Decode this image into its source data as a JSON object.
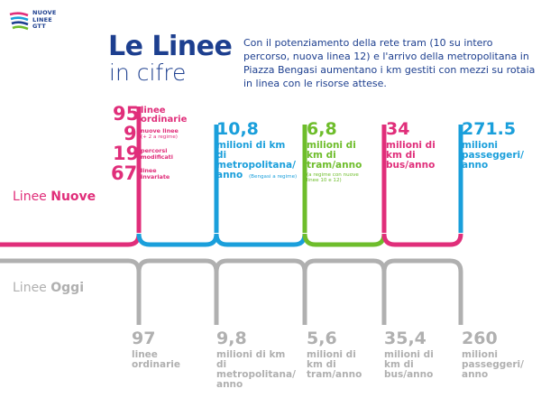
{
  "logo": {
    "line1": "NUOVE",
    "line2": "LINEE",
    "line3": "GTT"
  },
  "title": {
    "main": "Le Linee",
    "sub": "in cifre"
  },
  "intro": "Con il potenziamento della rete tram (10 su intero percorso, nuova linea 12) e l'arrivo della metropolitana in Piazza Bengasi aumentano i km gestiti con mezzi su rotaia in linea con le risorse attese.",
  "nuove": {
    "row_label_prefix": "Linee",
    "row_label_strong": "Nuove",
    "linee": [
      {
        "value": "95",
        "label1": "linee",
        "label2": "ordinarie"
      },
      {
        "value": "9",
        "label1": "nuove linee",
        "label2": "(+ 2 a regime)"
      },
      {
        "value": "19",
        "label1": "percorsi",
        "label2": "modificati"
      },
      {
        "value": "67",
        "label1": "linee",
        "label2": "invariate"
      }
    ],
    "metro": {
      "value": "10,8",
      "label": "milioni di km di metropolitana/ anno",
      "note": "(Bengasi a regime)"
    },
    "tram": {
      "value": "6,8",
      "label": "milioni di km di tram/anno",
      "note": "(a regime con nuove linee 10 e 12)"
    },
    "bus": {
      "value": "34",
      "label": "milioni di km di bus/anno"
    },
    "passeggeri": {
      "value": "271.5",
      "label": "milioni passeggeri/ anno"
    }
  },
  "oggi": {
    "row_label_prefix": "Linee",
    "row_label_strong": "Oggi",
    "linee": {
      "value": "97",
      "label": "linee ordinarie"
    },
    "metro": {
      "value": "9,8",
      "label": "milioni di km di metropolitana/ anno"
    },
    "tram": {
      "value": "5,6",
      "label": "milioni di km di tram/anno"
    },
    "bus": {
      "value": "35,4",
      "label": "milioni di km di bus/anno"
    },
    "passeggeri": {
      "value": "260",
      "label": "milioni passeggeri/ anno"
    }
  },
  "colors": {
    "pink": "#e02e7a",
    "blue": "#1a9fdb",
    "green": "#6ebd2b",
    "grey": "#b0b0b0",
    "navy": "#1d3f8f"
  }
}
